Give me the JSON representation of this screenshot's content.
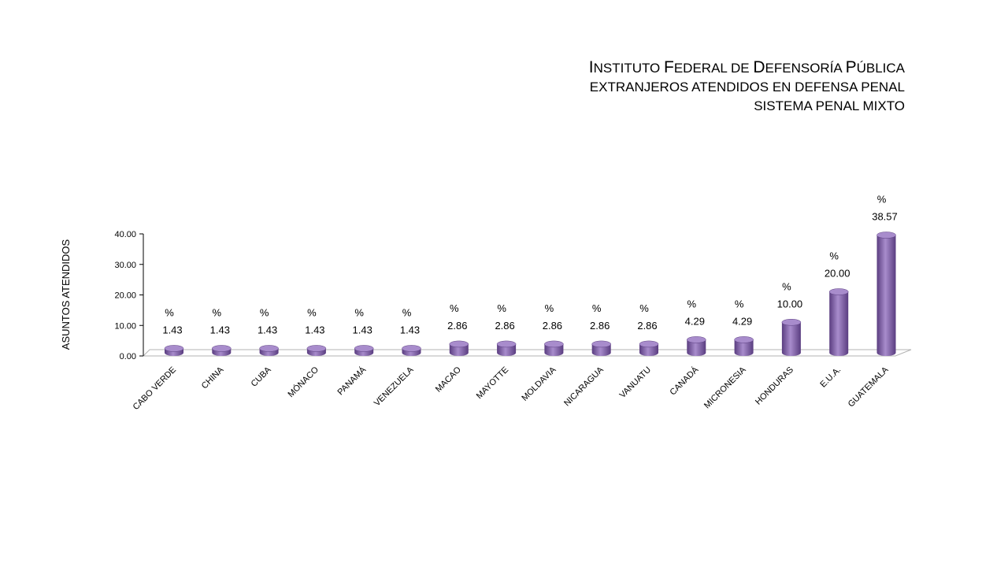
{
  "title": {
    "main": "INSTITUTO FEDERAL DE DEFENSORÍA PÚBLICA",
    "line2": "EXTRANJEROS ATENDIDOS EN DEFENSA PENAL",
    "line3": "SISTEMA PENAL MIXTO"
  },
  "colors": {
    "bar": "#8b6bb0",
    "bar_dark": "#5a3d80",
    "bar_top": "#a88ccc",
    "axis": "#000000",
    "floor": "#b3b3b3"
  },
  "chart_data": {
    "type": "bar",
    "style": "3d-cylinder",
    "ylabel": "ASUNTOS ATENDIDOS",
    "ylim": [
      0,
      40
    ],
    "yticks": [
      "0.00",
      "10.00",
      "20.00",
      "30.00",
      "40.00"
    ],
    "grid": false,
    "legend": "none",
    "categories": [
      "CABO VERDE",
      "CHINA",
      "CUBA",
      "MÓNACO",
      "PANAMÁ",
      "VENEZUELA",
      "MACAO",
      "MAYOTTE",
      "MOLDAVIA",
      "NICARAGUA",
      "VANUATU",
      "CANADÁ",
      "MICRONESIA",
      "HONDURAS",
      "E.U.A.",
      "GUATEMALA"
    ],
    "values": [
      1.43,
      1.43,
      1.43,
      1.43,
      1.43,
      1.43,
      2.86,
      2.86,
      2.86,
      2.86,
      2.86,
      4.29,
      4.29,
      10.0,
      20.0,
      38.57
    ],
    "labels": [
      "1.43",
      "1.43",
      "1.43",
      "1.43",
      "1.43",
      "1.43",
      "2.86",
      "2.86",
      "2.86",
      "2.86",
      "2.86",
      "4.29",
      "4.29",
      "10.00",
      "20.00",
      "38.57"
    ],
    "percent_symbol": "%"
  }
}
